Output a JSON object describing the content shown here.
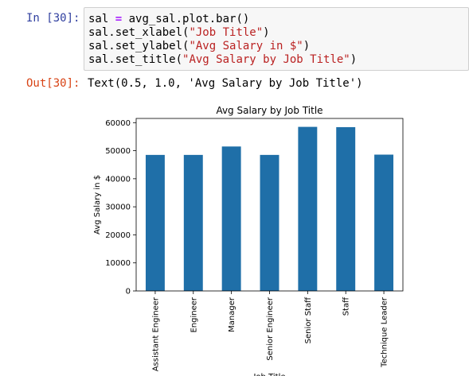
{
  "cells": {
    "input_prompt": "In [30]:",
    "code": [
      {
        "parts": [
          {
            "t": "sal ",
            "c": ""
          },
          {
            "t": "=",
            "c": "op"
          },
          {
            "t": " avg_sal.plot.bar()",
            "c": ""
          }
        ]
      },
      {
        "parts": [
          {
            "t": "sal.set_xlabel(",
            "c": ""
          },
          {
            "t": "\"Job Title\"",
            "c": "str"
          },
          {
            "t": ")",
            "c": ""
          }
        ]
      },
      {
        "parts": [
          {
            "t": "sal.set_ylabel(",
            "c": ""
          },
          {
            "t": "\"Avg Salary in $\"",
            "c": "str"
          },
          {
            "t": ")",
            "c": ""
          }
        ]
      },
      {
        "parts": [
          {
            "t": "sal.set_title(",
            "c": ""
          },
          {
            "t": "\"Avg Salary by Job Title\"",
            "c": "str"
          },
          {
            "t": ")",
            "c": ""
          }
        ]
      }
    ],
    "output_prompt": "Out[30]:",
    "output_text": "Text(0.5, 1.0, 'Avg Salary by Job Title')"
  },
  "colors": {
    "bar": "#1f6fa8",
    "input_prompt": "#303f9f",
    "output_prompt": "#d84315",
    "string": "#ba2121",
    "operator": "#aa22ff"
  },
  "chart_data": {
    "type": "bar",
    "title": "Avg Salary by Job Title",
    "xlabel": "Job Title",
    "ylabel": "Avg Salary in $",
    "categories": [
      "Assistant Engineer",
      "Engineer",
      "Manager",
      "Senior Engineer",
      "Senior Staff",
      "Staff",
      "Technique Leader"
    ],
    "values": [
      48500,
      48500,
      51500,
      48500,
      58500,
      58400,
      48600
    ],
    "ylim": [
      0,
      61500
    ],
    "yticks": [
      0,
      10000,
      20000,
      30000,
      40000,
      50000,
      60000
    ],
    "ytick_labels": [
      "0",
      "10000",
      "20000",
      "30000",
      "40000",
      "50000",
      "60000"
    ],
    "grid": false,
    "legend": "none"
  }
}
